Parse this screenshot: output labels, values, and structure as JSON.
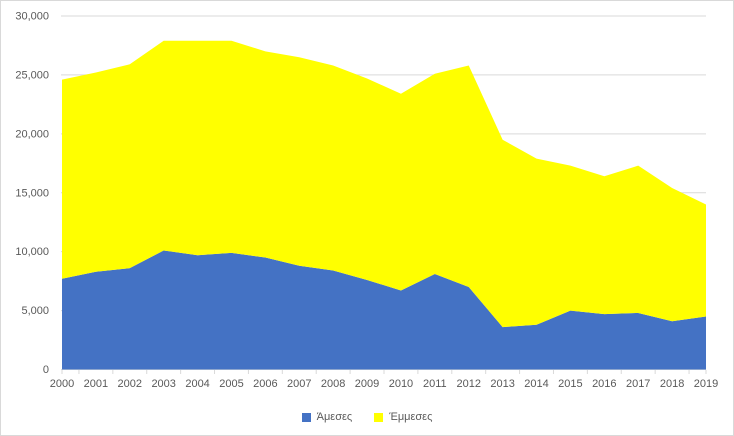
{
  "chart_data": {
    "type": "area",
    "stacked": true,
    "title": "",
    "xlabel": "",
    "ylabel": "",
    "categories": [
      "2000",
      "2001",
      "2002",
      "2003",
      "2004",
      "2005",
      "2006",
      "2007",
      "2008",
      "2009",
      "2010",
      "2011",
      "2012",
      "2013",
      "2014",
      "2015",
      "2016",
      "2017",
      "2018",
      "2019"
    ],
    "series": [
      {
        "name": "Άμεσες",
        "color": "#4472C4",
        "values": [
          7700,
          8300,
          8600,
          10100,
          9700,
          9900,
          9500,
          8800,
          8400,
          7600,
          6700,
          8100,
          7000,
          3600,
          3800,
          5000,
          4700,
          4800,
          4100,
          4500
        ]
      },
      {
        "name": "Έμμεσες",
        "color": "#FFFF00",
        "values": [
          16900,
          16900,
          17300,
          17800,
          18200,
          18000,
          17500,
          17700,
          17400,
          17100,
          16700,
          17000,
          18800,
          15900,
          14100,
          12300,
          11700,
          12500,
          11300,
          9500
        ]
      }
    ],
    "stacked_totals": [
      24600,
      25200,
      25900,
      27900,
      27900,
      27900,
      27000,
      26500,
      25800,
      24700,
      23400,
      25100,
      25800,
      19500,
      17900,
      17300,
      16400,
      17300,
      15400,
      14000
    ],
    "ylim": [
      0,
      30000
    ],
    "y_tick_interval": 5000,
    "y_tick_labels": [
      "0",
      "5,000",
      "10,000",
      "15,000",
      "20,000",
      "25,000",
      "30,000"
    ],
    "grid": true,
    "legend_position": "bottom",
    "colors": {
      "axis_text": "#595959",
      "gridline": "#d9d9d9",
      "tick_mark": "#d9d9d9",
      "chart_border": "#d9d9d9",
      "background": "#ffffff"
    }
  }
}
